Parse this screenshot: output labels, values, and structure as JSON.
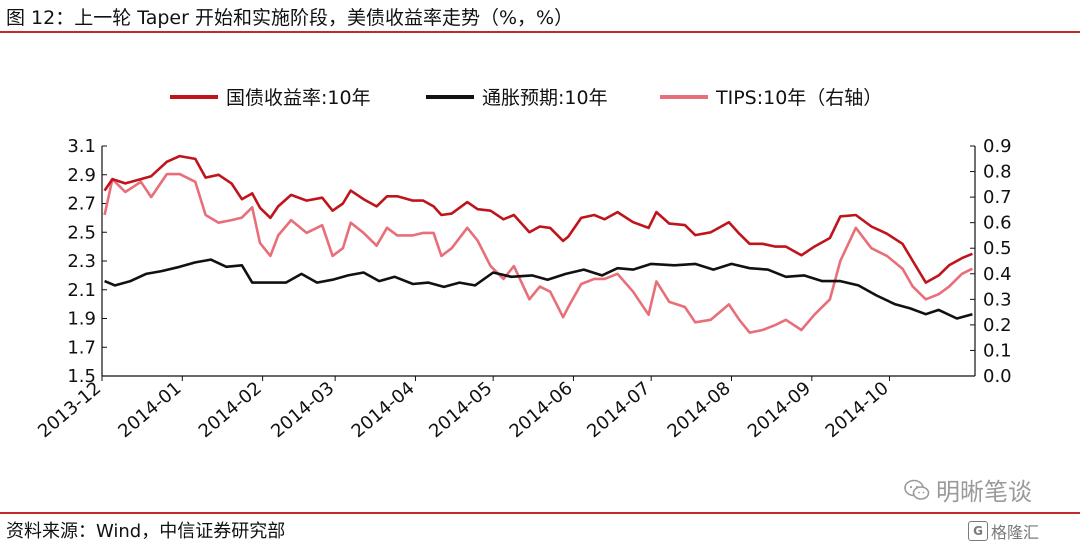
{
  "figure": {
    "title": "图 12：上一轮 Taper 开始和实施阶段，美债收益率走势（%，%）",
    "source": "资料来源：Wind，中信证券研究部",
    "watermark": "明晰笔谈",
    "brand": "格隆汇",
    "brand_icon_letter": "G"
  },
  "chart_data": {
    "type": "line",
    "title": "",
    "legend_position": "top-center",
    "grid": false,
    "x_labels": [
      "2013-12",
      "2014-01",
      "2014-02",
      "2014-03",
      "2014-04",
      "2014-05",
      "2014-06",
      "2014-07",
      "2014-08",
      "2014-09",
      "2014-10"
    ],
    "y_left": {
      "min": 1.5,
      "max": 3.1,
      "ticks": [
        "1.5",
        "1.7",
        "1.9",
        "2.1",
        "2.3",
        "2.5",
        "2.7",
        "2.9",
        "3.1"
      ]
    },
    "y_right": {
      "min": 0.0,
      "max": 0.9,
      "ticks": [
        "0.0",
        "0.1",
        "0.2",
        "0.3",
        "0.4",
        "0.5",
        "0.6",
        "0.7",
        "0.8",
        "0.9"
      ]
    },
    "series": [
      {
        "name": "国债收益率:10年",
        "axis": "left",
        "color": "#c0141c",
        "points": [
          [
            "2013-12-02",
            2.79
          ],
          [
            "2013-12-05",
            2.87
          ],
          [
            "2013-12-10",
            2.84
          ],
          [
            "2013-12-16",
            2.87
          ],
          [
            "2013-12-20",
            2.89
          ],
          [
            "2013-12-26",
            2.99
          ],
          [
            "2013-12-31",
            3.03
          ],
          [
            "2014-01-06",
            3.01
          ],
          [
            "2014-01-10",
            2.88
          ],
          [
            "2014-01-15",
            2.9
          ],
          [
            "2014-01-20",
            2.84
          ],
          [
            "2014-01-24",
            2.73
          ],
          [
            "2014-01-28",
            2.77
          ],
          [
            "2014-01-31",
            2.67
          ],
          [
            "2014-02-04",
            2.6
          ],
          [
            "2014-02-07",
            2.68
          ],
          [
            "2014-02-12",
            2.76
          ],
          [
            "2014-02-18",
            2.72
          ],
          [
            "2014-02-24",
            2.74
          ],
          [
            "2014-02-28",
            2.65
          ],
          [
            "2014-03-04",
            2.7
          ],
          [
            "2014-03-07",
            2.79
          ],
          [
            "2014-03-12",
            2.73
          ],
          [
            "2014-03-17",
            2.68
          ],
          [
            "2014-03-21",
            2.75
          ],
          [
            "2014-03-25",
            2.75
          ],
          [
            "2014-03-31",
            2.72
          ],
          [
            "2014-04-04",
            2.72
          ],
          [
            "2014-04-08",
            2.68
          ],
          [
            "2014-04-11",
            2.62
          ],
          [
            "2014-04-15",
            2.63
          ],
          [
            "2014-04-21",
            2.71
          ],
          [
            "2014-04-25",
            2.66
          ],
          [
            "2014-04-30",
            2.65
          ],
          [
            "2014-05-05",
            2.59
          ],
          [
            "2014-05-09",
            2.62
          ],
          [
            "2014-05-15",
            2.5
          ],
          [
            "2014-05-19",
            2.54
          ],
          [
            "2014-05-23",
            2.53
          ],
          [
            "2014-05-28",
            2.44
          ],
          [
            "2014-05-30",
            2.47
          ],
          [
            "2014-06-04",
            2.6
          ],
          [
            "2014-06-09",
            2.62
          ],
          [
            "2014-06-13",
            2.59
          ],
          [
            "2014-06-18",
            2.64
          ],
          [
            "2014-06-24",
            2.57
          ],
          [
            "2014-06-30",
            2.53
          ],
          [
            "2014-07-03",
            2.64
          ],
          [
            "2014-07-08",
            2.56
          ],
          [
            "2014-07-14",
            2.55
          ],
          [
            "2014-07-18",
            2.48
          ],
          [
            "2014-07-24",
            2.5
          ],
          [
            "2014-07-31",
            2.57
          ],
          [
            "2014-08-04",
            2.49
          ],
          [
            "2014-08-08",
            2.42
          ],
          [
            "2014-08-13",
            2.42
          ],
          [
            "2014-08-18",
            2.4
          ],
          [
            "2014-08-22",
            2.4
          ],
          [
            "2014-08-28",
            2.34
          ],
          [
            "2014-09-02",
            2.4
          ],
          [
            "2014-09-08",
            2.46
          ],
          [
            "2014-09-12",
            2.61
          ],
          [
            "2014-09-18",
            2.62
          ],
          [
            "2014-09-24",
            2.54
          ],
          [
            "2014-09-30",
            2.49
          ],
          [
            "2014-10-06",
            2.42
          ],
          [
            "2014-10-10",
            2.3
          ],
          [
            "2014-10-15",
            2.15
          ],
          [
            "2014-10-20",
            2.2
          ],
          [
            "2014-10-24",
            2.27
          ],
          [
            "2014-10-29",
            2.32
          ],
          [
            "2014-11-02",
            2.35
          ]
        ]
      },
      {
        "name": "通胀预期:10年",
        "axis": "left",
        "color": "#111111",
        "points": [
          [
            "2013-12-02",
            2.16
          ],
          [
            "2013-12-06",
            2.13
          ],
          [
            "2013-12-12",
            2.16
          ],
          [
            "2013-12-18",
            2.21
          ],
          [
            "2013-12-24",
            2.23
          ],
          [
            "2013-12-31",
            2.26
          ],
          [
            "2014-01-06",
            2.29
          ],
          [
            "2014-01-12",
            2.31
          ],
          [
            "2014-01-18",
            2.26
          ],
          [
            "2014-01-24",
            2.27
          ],
          [
            "2014-01-28",
            2.15
          ],
          [
            "2014-02-03",
            2.15
          ],
          [
            "2014-02-10",
            2.15
          ],
          [
            "2014-02-16",
            2.21
          ],
          [
            "2014-02-22",
            2.15
          ],
          [
            "2014-02-28",
            2.17
          ],
          [
            "2014-03-06",
            2.2
          ],
          [
            "2014-03-12",
            2.22
          ],
          [
            "2014-03-18",
            2.16
          ],
          [
            "2014-03-24",
            2.19
          ],
          [
            "2014-03-31",
            2.14
          ],
          [
            "2014-04-06",
            2.15
          ],
          [
            "2014-04-12",
            2.12
          ],
          [
            "2014-04-18",
            2.15
          ],
          [
            "2014-04-24",
            2.13
          ],
          [
            "2014-05-01",
            2.22
          ],
          [
            "2014-05-08",
            2.19
          ],
          [
            "2014-05-16",
            2.2
          ],
          [
            "2014-05-22",
            2.17
          ],
          [
            "2014-05-29",
            2.21
          ],
          [
            "2014-06-05",
            2.24
          ],
          [
            "2014-06-12",
            2.2
          ],
          [
            "2014-06-18",
            2.25
          ],
          [
            "2014-06-24",
            2.24
          ],
          [
            "2014-07-01",
            2.28
          ],
          [
            "2014-07-10",
            2.27
          ],
          [
            "2014-07-18",
            2.28
          ],
          [
            "2014-07-25",
            2.24
          ],
          [
            "2014-08-01",
            2.28
          ],
          [
            "2014-08-08",
            2.25
          ],
          [
            "2014-08-15",
            2.24
          ],
          [
            "2014-08-22",
            2.19
          ],
          [
            "2014-08-29",
            2.2
          ],
          [
            "2014-09-05",
            2.16
          ],
          [
            "2014-09-12",
            2.16
          ],
          [
            "2014-09-19",
            2.13
          ],
          [
            "2014-09-26",
            2.06
          ],
          [
            "2014-10-03",
            2.0
          ],
          [
            "2014-10-09",
            1.97
          ],
          [
            "2014-10-15",
            1.93
          ],
          [
            "2014-10-20",
            1.96
          ],
          [
            "2014-10-27",
            1.9
          ],
          [
            "2014-11-02",
            1.93
          ]
        ]
      },
      {
        "name": "TIPS:10年（右轴）",
        "axis": "right",
        "color": "#e86f79",
        "points": [
          [
            "2013-12-02",
            0.63
          ],
          [
            "2013-12-05",
            0.77
          ],
          [
            "2013-12-10",
            0.72
          ],
          [
            "2013-12-16",
            0.76
          ],
          [
            "2013-12-20",
            0.7
          ],
          [
            "2013-12-26",
            0.79
          ],
          [
            "2013-12-31",
            0.79
          ],
          [
            "2014-01-06",
            0.76
          ],
          [
            "2014-01-10",
            0.63
          ],
          [
            "2014-01-15",
            0.6
          ],
          [
            "2014-01-20",
            0.61
          ],
          [
            "2014-01-24",
            0.62
          ],
          [
            "2014-01-28",
            0.66
          ],
          [
            "2014-01-31",
            0.52
          ],
          [
            "2014-02-04",
            0.47
          ],
          [
            "2014-02-07",
            0.55
          ],
          [
            "2014-02-12",
            0.61
          ],
          [
            "2014-02-18",
            0.56
          ],
          [
            "2014-02-24",
            0.59
          ],
          [
            "2014-02-28",
            0.47
          ],
          [
            "2014-03-04",
            0.5
          ],
          [
            "2014-03-07",
            0.6
          ],
          [
            "2014-03-12",
            0.56
          ],
          [
            "2014-03-17",
            0.51
          ],
          [
            "2014-03-21",
            0.58
          ],
          [
            "2014-03-25",
            0.55
          ],
          [
            "2014-03-31",
            0.55
          ],
          [
            "2014-04-04",
            0.56
          ],
          [
            "2014-04-08",
            0.56
          ],
          [
            "2014-04-11",
            0.47
          ],
          [
            "2014-04-15",
            0.5
          ],
          [
            "2014-04-21",
            0.58
          ],
          [
            "2014-04-25",
            0.53
          ],
          [
            "2014-04-30",
            0.43
          ],
          [
            "2014-05-05",
            0.38
          ],
          [
            "2014-05-09",
            0.43
          ],
          [
            "2014-05-15",
            0.3
          ],
          [
            "2014-05-19",
            0.35
          ],
          [
            "2014-05-23",
            0.33
          ],
          [
            "2014-05-28",
            0.23
          ],
          [
            "2014-05-30",
            0.27
          ],
          [
            "2014-06-04",
            0.36
          ],
          [
            "2014-06-09",
            0.38
          ],
          [
            "2014-06-13",
            0.38
          ],
          [
            "2014-06-18",
            0.4
          ],
          [
            "2014-06-24",
            0.33
          ],
          [
            "2014-06-30",
            0.24
          ],
          [
            "2014-07-03",
            0.37
          ],
          [
            "2014-07-08",
            0.29
          ],
          [
            "2014-07-14",
            0.27
          ],
          [
            "2014-07-18",
            0.21
          ],
          [
            "2014-07-24",
            0.22
          ],
          [
            "2014-07-31",
            0.28
          ],
          [
            "2014-08-04",
            0.22
          ],
          [
            "2014-08-08",
            0.17
          ],
          [
            "2014-08-13",
            0.18
          ],
          [
            "2014-08-18",
            0.2
          ],
          [
            "2014-08-22",
            0.22
          ],
          [
            "2014-08-28",
            0.18
          ],
          [
            "2014-09-02",
            0.24
          ],
          [
            "2014-09-08",
            0.3
          ],
          [
            "2014-09-12",
            0.45
          ],
          [
            "2014-09-18",
            0.58
          ],
          [
            "2014-09-24",
            0.5
          ],
          [
            "2014-09-30",
            0.47
          ],
          [
            "2014-10-06",
            0.42
          ],
          [
            "2014-10-10",
            0.35
          ],
          [
            "2014-10-15",
            0.3
          ],
          [
            "2014-10-20",
            0.32
          ],
          [
            "2014-10-24",
            0.35
          ],
          [
            "2014-10-29",
            0.4
          ],
          [
            "2014-11-02",
            0.42
          ]
        ]
      }
    ]
  }
}
